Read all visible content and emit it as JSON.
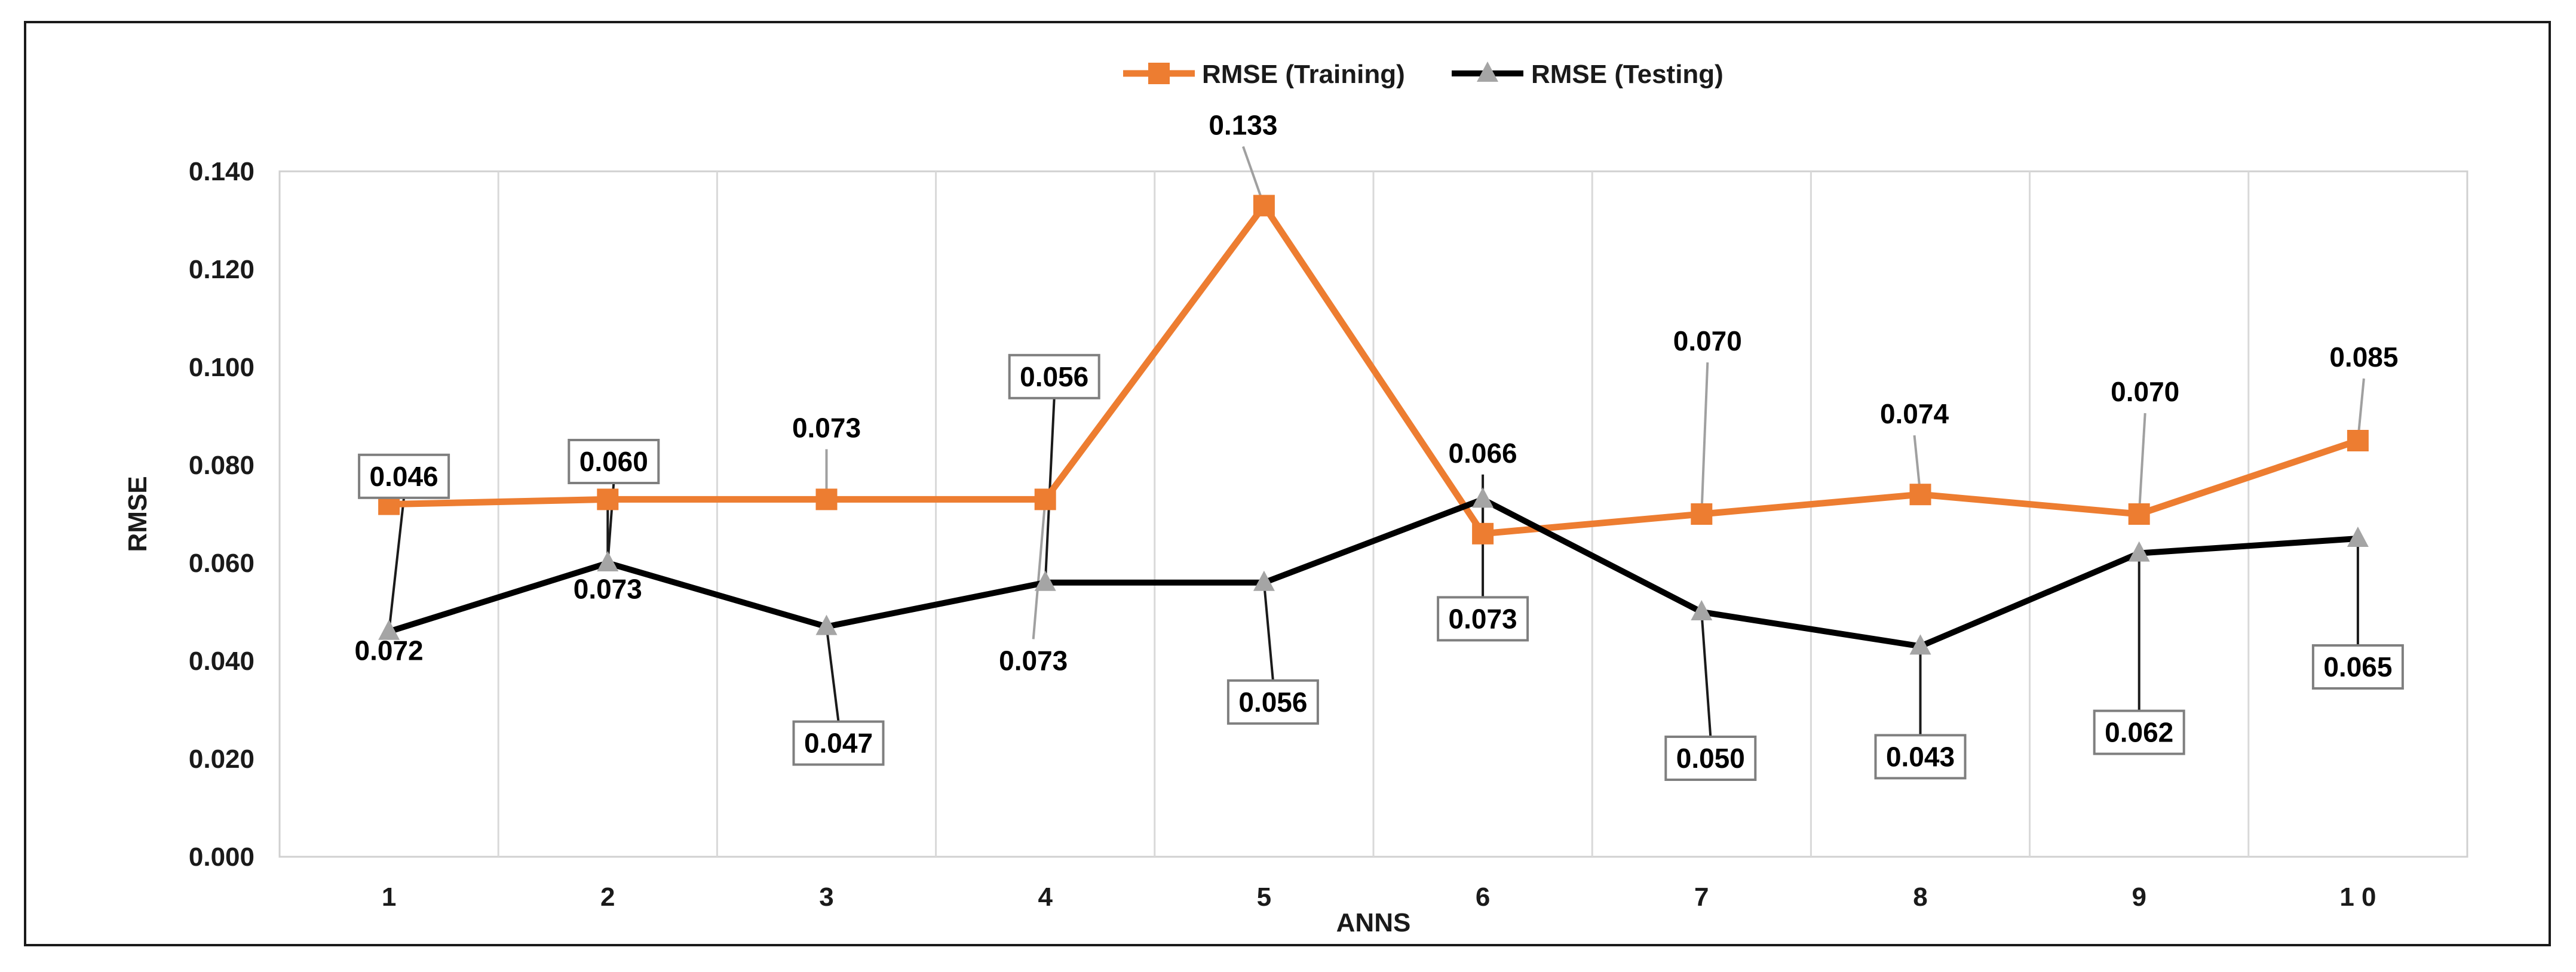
{
  "chart_data": {
    "type": "line",
    "title": "",
    "xlabel": "ANNS",
    "ylabel": "RMSE",
    "categories": [
      "1",
      "2",
      "3",
      "4",
      "5",
      "6",
      "7",
      "8",
      "9",
      "1 0"
    ],
    "ylim": [
      0,
      0.14
    ],
    "yticks": [
      "0.000",
      "0.020",
      "0.040",
      "0.060",
      "0.080",
      "0.100",
      "0.120",
      "0.140"
    ],
    "grid": "vertical",
    "legend_position": "top-center",
    "series": [
      {
        "name": "RMSE (Training)",
        "color": "#ED7D31",
        "marker": "square",
        "values": [
          0.072,
          0.073,
          0.073,
          0.073,
          0.133,
          0.066,
          0.07,
          0.074,
          0.07,
          0.085
        ],
        "labels": [
          "0.072",
          "0.073",
          "0.073",
          "0.073",
          "0.133",
          "0.066",
          "0.070",
          "0.074",
          "0.070",
          "0.085"
        ]
      },
      {
        "name": "RMSE (Testing)",
        "color": "#000000",
        "marker_color": "#A5A5A5",
        "marker": "triangle",
        "values": [
          0.046,
          0.06,
          0.047,
          0.056,
          0.056,
          0.073,
          0.05,
          0.043,
          0.062,
          0.065
        ],
        "labels": [
          "0.046",
          "0.060",
          "0.047",
          "0.056",
          "0.056",
          "0.073",
          "0.050",
          "0.043",
          "0.062",
          "0.065"
        ]
      }
    ]
  }
}
